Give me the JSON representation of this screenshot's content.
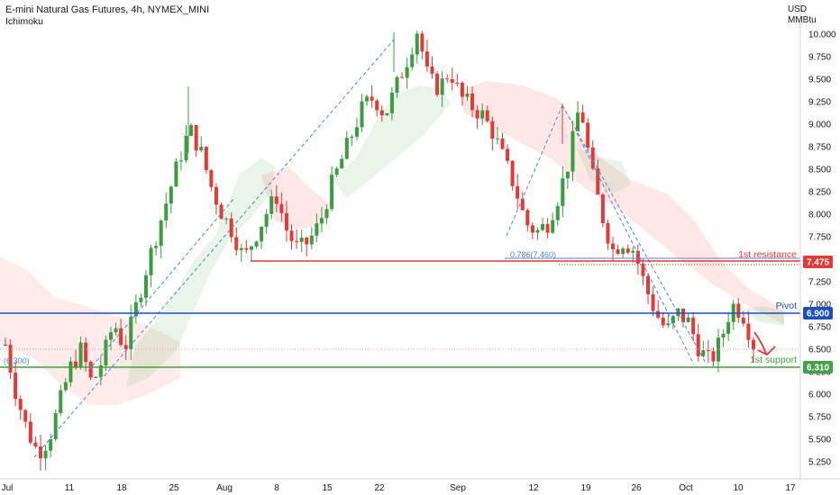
{
  "header": {
    "title": "E-mini Natural Gas Futures, 4h, NYMEX_MINI",
    "indicator": "Ichimoku"
  },
  "axis": {
    "unit_line1": "USD",
    "unit_line2": "MMBtu"
  },
  "levels": {
    "resistance": {
      "label": "1st resistance",
      "value": "7.475",
      "color": "#e53935"
    },
    "pivot": {
      "label": "Pivot",
      "value": "6.900",
      "color": "#1e4fc2"
    },
    "support": {
      "label": "1st support",
      "value": "6.310",
      "color": "#43a047"
    }
  },
  "annotations": {
    "fib_left": "(6.300)",
    "fib_mid": "0.786(7.460)"
  },
  "chart_data": {
    "type": "candlestick",
    "title": "E-mini Natural Gas Futures, 4h, NYMEX_MINI",
    "ylabel": "USD/MMBtu",
    "ylim": [
      5.05,
      10.35
    ],
    "yticks": [
      "10.000",
      "9.750",
      "9.500",
      "9.250",
      "9.000",
      "8.750",
      "8.500",
      "8.250",
      "8.000",
      "7.750",
      "7.500",
      "7.250",
      "7.000",
      "6.750",
      "6.500",
      "6.250",
      "6.000",
      "5.750",
      "5.500",
      "5.250"
    ],
    "xticks": [
      "Jul",
      "11",
      "18",
      "25",
      "Aug",
      "8",
      "15",
      "22",
      "Sep",
      "12",
      "19",
      "26",
      "Oct",
      "10",
      "17"
    ],
    "horizontal_levels": [
      {
        "name": "1st resistance",
        "value": 7.475
      },
      {
        "name": "Pivot",
        "value": 6.9
      },
      {
        "name": "1st support",
        "value": 6.31
      }
    ],
    "price_path": [
      6.55,
      6.0,
      5.6,
      5.35,
      5.5,
      5.9,
      6.3,
      6.5,
      6.1,
      6.4,
      6.8,
      6.5,
      6.95,
      7.4,
      7.8,
      8.2,
      8.6,
      8.95,
      8.7,
      8.3,
      8.0,
      7.8,
      7.5,
      7.75,
      8.0,
      8.2,
      7.8,
      7.6,
      7.7,
      7.9,
      8.3,
      8.6,
      8.9,
      9.2,
      9.3,
      9.1,
      9.4,
      9.7,
      10.05,
      9.5,
      9.4,
      9.6,
      9.3,
      9.2,
      9.1,
      8.9,
      8.6,
      8.3,
      7.9,
      7.8,
      7.9,
      8.2,
      8.6,
      9.25,
      8.5,
      8.0,
      7.6,
      7.7,
      7.6,
      7.2,
      6.9,
      6.7,
      6.9,
      6.8,
      6.5,
      6.35,
      6.6,
      7.0,
      6.9,
      6.55
    ],
    "ichimoku_cloud": "bullish cloud green, bearish cloud red"
  }
}
